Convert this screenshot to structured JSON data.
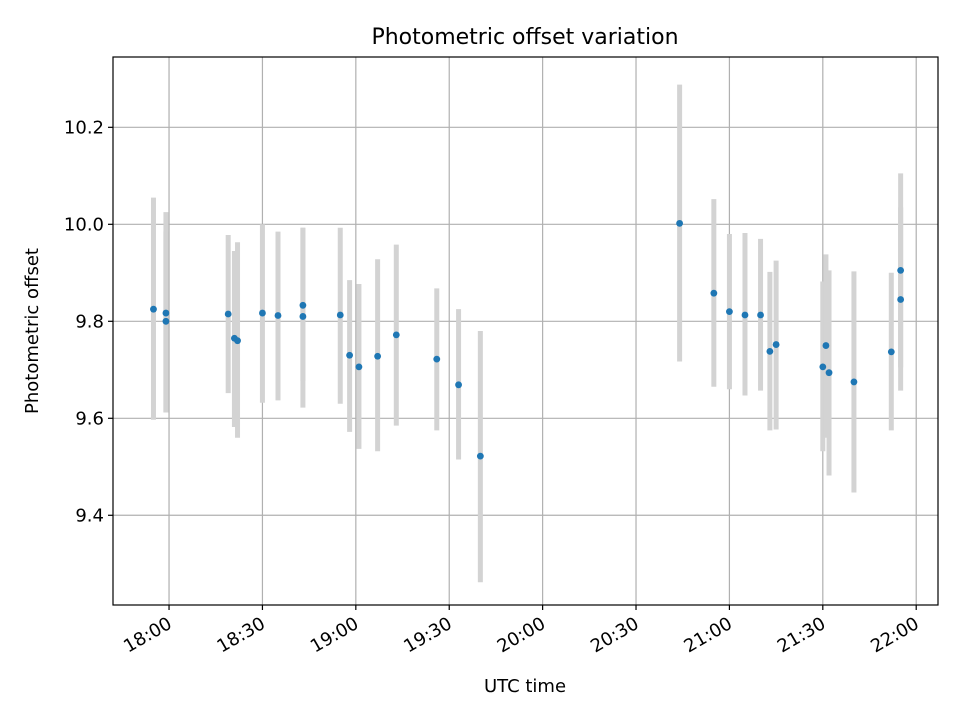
{
  "chart_data": {
    "type": "scatter",
    "title": "Photometric offset variation",
    "xlabel": "UTC time",
    "ylabel": "Photometric offset",
    "xlim": [
      "17:42",
      "22:07"
    ],
    "ylim": [
      9.215,
      10.345
    ],
    "xticks": [
      "18:00",
      "18:30",
      "19:00",
      "19:30",
      "20:00",
      "20:30",
      "21:00",
      "21:30",
      "22:00"
    ],
    "yticks": [
      9.4,
      9.6,
      9.8,
      10.0,
      10.2
    ],
    "ytick_labels": [
      "9.4",
      "9.6",
      "9.8",
      "10.0",
      "10.2"
    ],
    "grid": true,
    "legend": "none",
    "colors": {
      "marker": "#1f77b4",
      "errorbar": "#d3d3d3",
      "grid": "#b0b0b0"
    },
    "series": [
      {
        "points": [
          {
            "time": "17:55",
            "y": 9.825,
            "err_low": 9.597,
            "err_high": 10.055
          },
          {
            "time": "17:59",
            "y": 9.817,
            "err_low": 9.612,
            "err_high": 10.025
          },
          {
            "time": "17:59",
            "y": 9.8,
            "err_low": 9.612,
            "err_high": 9.985
          },
          {
            "time": "18:19",
            "y": 9.815,
            "err_low": 9.652,
            "err_high": 9.978
          },
          {
            "time": "18:21",
            "y": 9.765,
            "err_low": 9.582,
            "err_high": 9.945
          },
          {
            "time": "18:22",
            "y": 9.76,
            "err_low": 9.56,
            "err_high": 9.963
          },
          {
            "time": "18:30",
            "y": 9.817,
            "err_low": 9.632,
            "err_high": 10.0
          },
          {
            "time": "18:35",
            "y": 9.812,
            "err_low": 9.637,
            "err_high": 9.985
          },
          {
            "time": "18:43",
            "y": 9.81,
            "err_low": 9.622,
            "err_high": 9.993
          },
          {
            "time": "18:43",
            "y": 9.833,
            "err_low": 9.677,
            "err_high": 9.993
          },
          {
            "time": "18:55",
            "y": 9.813,
            "err_low": 9.63,
            "err_high": 9.993
          },
          {
            "time": "18:58",
            "y": 9.73,
            "err_low": 9.572,
            "err_high": 9.885
          },
          {
            "time": "19:01",
            "y": 9.706,
            "err_low": 9.537,
            "err_high": 9.877
          },
          {
            "time": "19:07",
            "y": 9.728,
            "err_low": 9.532,
            "err_high": 9.928
          },
          {
            "time": "19:13",
            "y": 9.772,
            "err_low": 9.585,
            "err_high": 9.958
          },
          {
            "time": "19:26",
            "y": 9.722,
            "err_low": 9.575,
            "err_high": 9.868
          },
          {
            "time": "19:33",
            "y": 9.669,
            "err_low": 9.515,
            "err_high": 9.825
          },
          {
            "time": "19:40",
            "y": 9.522,
            "err_low": 9.262,
            "err_high": 9.78
          },
          {
            "time": "20:44",
            "y": 10.002,
            "err_low": 9.717,
            "err_high": 10.288
          },
          {
            "time": "20:55",
            "y": 9.858,
            "err_low": 9.665,
            "err_high": 10.052
          },
          {
            "time": "21:00",
            "y": 9.82,
            "err_low": 9.66,
            "err_high": 9.98
          },
          {
            "time": "21:05",
            "y": 9.813,
            "err_low": 9.647,
            "err_high": 9.982
          },
          {
            "time": "21:10",
            "y": 9.813,
            "err_low": 9.657,
            "err_high": 9.97
          },
          {
            "time": "21:13",
            "y": 9.738,
            "err_low": 9.575,
            "err_high": 9.902
          },
          {
            "time": "21:15",
            "y": 9.752,
            "err_low": 9.577,
            "err_high": 9.925
          },
          {
            "time": "21:30",
            "y": 9.706,
            "err_low": 9.532,
            "err_high": 9.882
          },
          {
            "time": "21:31",
            "y": 9.75,
            "err_low": 9.56,
            "err_high": 9.938
          },
          {
            "time": "21:32",
            "y": 9.694,
            "err_low": 9.482,
            "err_high": 9.905
          },
          {
            "time": "21:40",
            "y": 9.675,
            "err_low": 9.447,
            "err_high": 9.903
          },
          {
            "time": "21:52",
            "y": 9.737,
            "err_low": 9.575,
            "err_high": 9.9
          },
          {
            "time": "21:55",
            "y": 9.845,
            "err_low": 9.657,
            "err_high": 10.035
          },
          {
            "time": "21:55",
            "y": 9.905,
            "err_low": 9.705,
            "err_high": 10.105
          }
        ]
      }
    ]
  }
}
